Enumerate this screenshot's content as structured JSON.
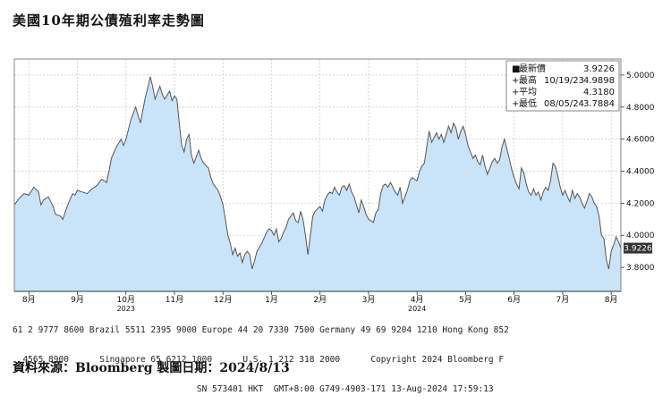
{
  "title": "美國10年期公債殖利率走勢圖",
  "source": "資料來源：Bloomberg 製圖日期：2024/8/13",
  "footer": {
    "line1": "61 2 9777 8600 Brazil 5511 2395 9000 Europe 44 20 7330 7500 Germany 49 69 9204 1210 Hong Kong 852",
    "line2": "  4565 8900      Singapore 65 6212 1000      U.S. 1 212 318 2000      Copyright 2024 Bloomberg F",
    "line3": "                                    SN 573401 HKT  GMT+8:00 G749-4903-171 13-Aug-2024 17:59:13"
  },
  "legend": {
    "items": [
      {
        "label": "最新價",
        "date": "",
        "value": "3.9226",
        "marker": "■"
      },
      {
        "label": "最高",
        "date": "10/19/23",
        "value": "4.9898",
        "marker": "+"
      },
      {
        "label": "平均",
        "date": "",
        "value": "4.3180",
        "marker": "+"
      },
      {
        "label": "最低",
        "date": "08/05/24",
        "value": "3.7884",
        "marker": "+"
      }
    ]
  },
  "last_value_label": "3.9226",
  "colors": {
    "fill": "#c9e3f8",
    "line": "#555555",
    "grid": "#bbbbbb",
    "last_box": "#333333"
  },
  "chart_data": {
    "type": "area",
    "title": "美國10年期公債殖利率走勢圖",
    "xlabel": "",
    "ylabel": "",
    "ylim": [
      3.65,
      5.1
    ],
    "y_ticks": [
      3.8,
      4.0,
      4.2,
      4.4,
      4.6,
      4.8,
      5.0
    ],
    "y_tick_labels": [
      "3.8000",
      "4.0000",
      "4.2000",
      "4.4000",
      "4.6000",
      "4.8000",
      "5.0000"
    ],
    "xlim": [
      0,
      12.5
    ],
    "x_ticks": [
      {
        "pos": 0.3,
        "label": "8月"
      },
      {
        "pos": 1.3,
        "label": "9月"
      },
      {
        "pos": 2.3,
        "label": "10月"
      },
      {
        "pos": 3.3,
        "label": "11月"
      },
      {
        "pos": 4.3,
        "label": "12月"
      },
      {
        "pos": 5.3,
        "label": "1月"
      },
      {
        "pos": 6.3,
        "label": "2月"
      },
      {
        "pos": 7.3,
        "label": "3月"
      },
      {
        "pos": 8.3,
        "label": "4月"
      },
      {
        "pos": 9.3,
        "label": "5月"
      },
      {
        "pos": 10.3,
        "label": "6月"
      },
      {
        "pos": 11.3,
        "label": "7月"
      },
      {
        "pos": 12.3,
        "label": "8月"
      }
    ],
    "year_labels": [
      {
        "pos": 2.3,
        "label": "2023"
      },
      {
        "pos": 8.3,
        "label": "2024"
      }
    ],
    "grid": true,
    "legend_position": "top-right",
    "series": [
      {
        "values": [
          [
            0.0,
            4.19
          ],
          [
            0.1,
            4.23
          ],
          [
            0.2,
            4.26
          ],
          [
            0.3,
            4.25
          ],
          [
            0.4,
            4.3
          ],
          [
            0.5,
            4.27
          ],
          [
            0.55,
            4.19
          ],
          [
            0.6,
            4.22
          ],
          [
            0.7,
            4.24
          ],
          [
            0.8,
            4.18
          ],
          [
            0.85,
            4.13
          ],
          [
            0.95,
            4.12
          ],
          [
            1.0,
            4.1
          ],
          [
            1.1,
            4.19
          ],
          [
            1.2,
            4.26
          ],
          [
            1.25,
            4.25
          ],
          [
            1.3,
            4.28
          ],
          [
            1.4,
            4.27
          ],
          [
            1.5,
            4.26
          ],
          [
            1.6,
            4.29
          ],
          [
            1.7,
            4.31
          ],
          [
            1.8,
            4.35
          ],
          [
            1.9,
            4.33
          ],
          [
            1.95,
            4.4
          ],
          [
            2.0,
            4.48
          ],
          [
            2.1,
            4.55
          ],
          [
            2.2,
            4.6
          ],
          [
            2.25,
            4.56
          ],
          [
            2.3,
            4.6
          ],
          [
            2.4,
            4.72
          ],
          [
            2.5,
            4.8
          ],
          [
            2.55,
            4.75
          ],
          [
            2.6,
            4.7
          ],
          [
            2.7,
            4.86
          ],
          [
            2.75,
            4.92
          ],
          [
            2.8,
            4.99
          ],
          [
            2.85,
            4.93
          ],
          [
            2.9,
            4.85
          ],
          [
            3.0,
            4.93
          ],
          [
            3.05,
            4.88
          ],
          [
            3.1,
            4.85
          ],
          [
            3.2,
            4.9
          ],
          [
            3.25,
            4.84
          ],
          [
            3.3,
            4.87
          ],
          [
            3.35,
            4.85
          ],
          [
            3.4,
            4.7
          ],
          [
            3.45,
            4.56
          ],
          [
            3.5,
            4.52
          ],
          [
            3.55,
            4.6
          ],
          [
            3.6,
            4.63
          ],
          [
            3.65,
            4.5
          ],
          [
            3.7,
            4.45
          ],
          [
            3.8,
            4.53
          ],
          [
            3.85,
            4.48
          ],
          [
            3.9,
            4.45
          ],
          [
            4.0,
            4.42
          ],
          [
            4.05,
            4.36
          ],
          [
            4.1,
            4.32
          ],
          [
            4.2,
            4.28
          ],
          [
            4.25,
            4.24
          ],
          [
            4.3,
            4.19
          ],
          [
            4.35,
            4.1
          ],
          [
            4.4,
            4.0
          ],
          [
            4.45,
            3.95
          ],
          [
            4.5,
            3.88
          ],
          [
            4.55,
            3.92
          ],
          [
            4.6,
            3.87
          ],
          [
            4.65,
            3.89
          ],
          [
            4.7,
            3.83
          ],
          [
            4.75,
            3.88
          ],
          [
            4.8,
            3.9
          ],
          [
            4.85,
            3.88
          ],
          [
            4.9,
            3.79
          ],
          [
            4.95,
            3.84
          ],
          [
            5.0,
            3.9
          ],
          [
            5.1,
            3.95
          ],
          [
            5.2,
            4.02
          ],
          [
            5.25,
            4.04
          ],
          [
            5.3,
            4.03
          ],
          [
            5.35,
            4.0
          ],
          [
            5.4,
            4.04
          ],
          [
            5.45,
            3.96
          ],
          [
            5.5,
            3.98
          ],
          [
            5.55,
            4.02
          ],
          [
            5.6,
            4.05
          ],
          [
            5.65,
            4.1
          ],
          [
            5.7,
            4.12
          ],
          [
            5.75,
            4.14
          ],
          [
            5.8,
            4.09
          ],
          [
            5.85,
            4.08
          ],
          [
            5.9,
            4.15
          ],
          [
            5.95,
            4.1
          ],
          [
            6.0,
            4.0
          ],
          [
            6.05,
            3.88
          ],
          [
            6.1,
            4.0
          ],
          [
            6.15,
            4.12
          ],
          [
            6.2,
            4.15
          ],
          [
            6.3,
            4.18
          ],
          [
            6.35,
            4.15
          ],
          [
            6.4,
            4.22
          ],
          [
            6.45,
            4.25
          ],
          [
            6.5,
            4.27
          ],
          [
            6.55,
            4.26
          ],
          [
            6.6,
            4.3
          ],
          [
            6.65,
            4.27
          ],
          [
            6.7,
            4.25
          ],
          [
            6.75,
            4.3
          ],
          [
            6.8,
            4.31
          ],
          [
            6.85,
            4.28
          ],
          [
            6.9,
            4.32
          ],
          [
            6.95,
            4.27
          ],
          [
            7.0,
            4.24
          ],
          [
            7.05,
            4.19
          ],
          [
            7.1,
            4.14
          ],
          [
            7.15,
            4.22
          ],
          [
            7.2,
            4.18
          ],
          [
            7.25,
            4.13
          ],
          [
            7.3,
            4.1
          ],
          [
            7.35,
            4.09
          ],
          [
            7.4,
            4.08
          ],
          [
            7.45,
            4.14
          ],
          [
            7.5,
            4.16
          ],
          [
            7.55,
            4.26
          ],
          [
            7.6,
            4.31
          ],
          [
            7.65,
            4.32
          ],
          [
            7.7,
            4.3
          ],
          [
            7.75,
            4.33
          ],
          [
            7.8,
            4.3
          ],
          [
            7.85,
            4.27
          ],
          [
            7.9,
            4.25
          ],
          [
            7.95,
            4.3
          ],
          [
            8.0,
            4.2
          ],
          [
            8.05,
            4.24
          ],
          [
            8.1,
            4.28
          ],
          [
            8.15,
            4.34
          ],
          [
            8.2,
            4.36
          ],
          [
            8.25,
            4.35
          ],
          [
            8.3,
            4.34
          ],
          [
            8.35,
            4.4
          ],
          [
            8.4,
            4.43
          ],
          [
            8.45,
            4.45
          ],
          [
            8.5,
            4.55
          ],
          [
            8.55,
            4.65
          ],
          [
            8.6,
            4.58
          ],
          [
            8.65,
            4.61
          ],
          [
            8.7,
            4.64
          ],
          [
            8.75,
            4.6
          ],
          [
            8.8,
            4.63
          ],
          [
            8.85,
            4.58
          ],
          [
            8.9,
            4.63
          ],
          [
            8.95,
            4.68
          ],
          [
            9.0,
            4.64
          ],
          [
            9.05,
            4.7
          ],
          [
            9.1,
            4.67
          ],
          [
            9.15,
            4.6
          ],
          [
            9.2,
            4.65
          ],
          [
            9.25,
            4.68
          ],
          [
            9.3,
            4.63
          ],
          [
            9.35,
            4.56
          ],
          [
            9.4,
            4.52
          ],
          [
            9.45,
            4.48
          ],
          [
            9.5,
            4.5
          ],
          [
            9.55,
            4.46
          ],
          [
            9.6,
            4.44
          ],
          [
            9.65,
            4.5
          ],
          [
            9.7,
            4.43
          ],
          [
            9.75,
            4.38
          ],
          [
            9.8,
            4.42
          ],
          [
            9.85,
            4.46
          ],
          [
            9.9,
            4.48
          ],
          [
            9.95,
            4.45
          ],
          [
            10.0,
            4.47
          ],
          [
            10.05,
            4.55
          ],
          [
            10.1,
            4.6
          ],
          [
            10.15,
            4.54
          ],
          [
            10.2,
            4.48
          ],
          [
            10.25,
            4.41
          ],
          [
            10.3,
            4.36
          ],
          [
            10.35,
            4.32
          ],
          [
            10.4,
            4.29
          ],
          [
            10.45,
            4.42
          ],
          [
            10.5,
            4.39
          ],
          [
            10.55,
            4.32
          ],
          [
            10.6,
            4.27
          ],
          [
            10.65,
            4.25
          ],
          [
            10.7,
            4.29
          ],
          [
            10.75,
            4.25
          ],
          [
            10.8,
            4.27
          ],
          [
            10.85,
            4.22
          ],
          [
            10.9,
            4.27
          ],
          [
            10.95,
            4.3
          ],
          [
            11.0,
            4.28
          ],
          [
            11.05,
            4.34
          ],
          [
            11.1,
            4.45
          ],
          [
            11.15,
            4.43
          ],
          [
            11.2,
            4.37
          ],
          [
            11.25,
            4.3
          ],
          [
            11.3,
            4.25
          ],
          [
            11.35,
            4.28
          ],
          [
            11.4,
            4.24
          ],
          [
            11.45,
            4.21
          ],
          [
            11.5,
            4.28
          ],
          [
            11.55,
            4.23
          ],
          [
            11.6,
            4.26
          ],
          [
            11.65,
            4.24
          ],
          [
            11.7,
            4.2
          ],
          [
            11.75,
            4.17
          ],
          [
            11.8,
            4.21
          ],
          [
            11.85,
            4.26
          ],
          [
            11.9,
            4.24
          ],
          [
            11.95,
            4.2
          ],
          [
            12.0,
            4.18
          ],
          [
            12.05,
            4.12
          ],
          [
            12.1,
            4.0
          ],
          [
            12.15,
            3.98
          ],
          [
            12.2,
            3.85
          ],
          [
            12.25,
            3.79
          ],
          [
            12.3,
            3.9
          ],
          [
            12.35,
            3.94
          ],
          [
            12.4,
            3.99
          ],
          [
            12.45,
            3.96
          ],
          [
            12.5,
            3.92
          ]
        ]
      }
    ]
  }
}
